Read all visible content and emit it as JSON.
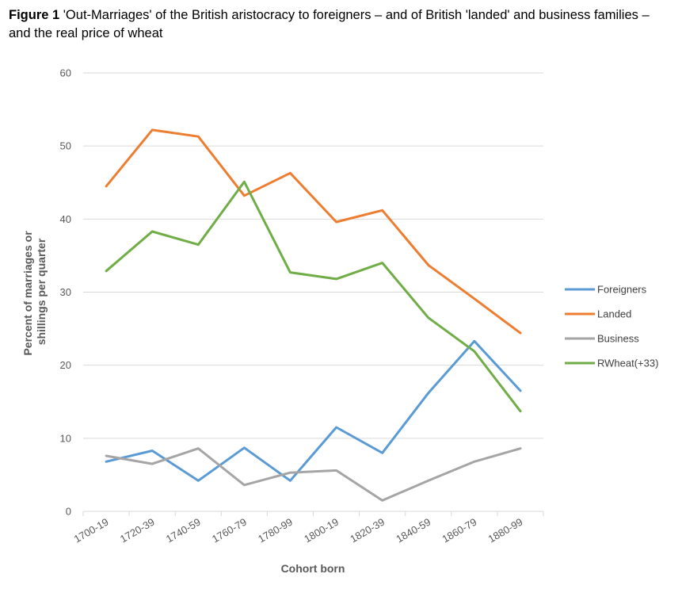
{
  "figure": {
    "label": "Figure 1",
    "caption": "'Out-Marriages' of the British aristocracy to foreigners – and of British 'landed' and business families – and the real price of wheat"
  },
  "chart_data": {
    "type": "line",
    "title": "Figure 1 'Out-Marriages' of the British aristocracy to foreigners – and of British 'landed' and business families – and the real price of wheat",
    "xlabel": "Cohort born",
    "ylabel": "Percent of marriages or shillings per quarter",
    "ylabel_lines": [
      "Percent of marriages or",
      "shillings per quarter"
    ],
    "categories": [
      "1700-19",
      "1720-39",
      "1740-59",
      "1760-79",
      "1780-99",
      "1800-19",
      "1820-39",
      "1840-59",
      "1860-79",
      "1880-99"
    ],
    "ylim": [
      0,
      60
    ],
    "yticks": [
      0,
      10,
      20,
      30,
      40,
      50,
      60
    ],
    "grid": true,
    "legend_position": "right",
    "series": [
      {
        "name": "Foreigners",
        "color": "#5B9BD5",
        "values": [
          6.8,
          8.3,
          4.2,
          8.7,
          4.2,
          11.5,
          8.0,
          16.2,
          23.3,
          16.5
        ]
      },
      {
        "name": "Landed",
        "color": "#ED7D31",
        "values": [
          44.5,
          52.2,
          51.3,
          43.2,
          46.3,
          39.6,
          41.2,
          33.7,
          29.1,
          24.4
        ]
      },
      {
        "name": "Business",
        "color": "#A5A5A5",
        "values": [
          7.6,
          6.5,
          8.6,
          3.6,
          5.3,
          5.6,
          1.5,
          4.2,
          6.8,
          8.6
        ]
      },
      {
        "name": "RWheat(+33)",
        "color": "#70AD47",
        "values": [
          32.9,
          38.3,
          36.5,
          45.1,
          32.7,
          31.8,
          34.0,
          26.5,
          21.9,
          13.7
        ]
      }
    ]
  }
}
